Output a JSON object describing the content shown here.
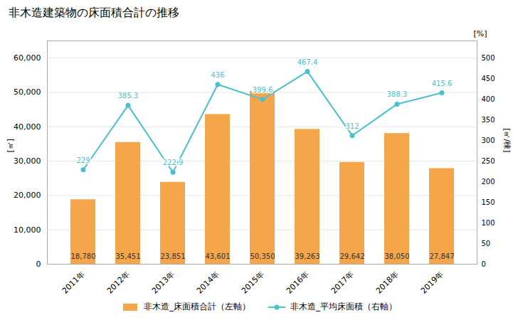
{
  "chart_data": {
    "type": "bar",
    "title": "非木造建築物の床面積合計の推移",
    "categories": [
      "2011年",
      "2012年",
      "2013年",
      "2014年",
      "2015年",
      "2016年",
      "2017年",
      "2018年",
      "2019年"
    ],
    "series": [
      {
        "name": "非木造_床面積合計（左軸）",
        "type": "bar",
        "color": "#F5A54A",
        "values": [
          18780,
          35451,
          23851,
          43601,
          50350,
          39263,
          29642,
          38050,
          27847
        ],
        "data_labels": true,
        "value_labels": [
          "18,780",
          "35,451",
          "23,851",
          "43,601",
          "50,350",
          "39,263",
          "29,642",
          "38,050",
          "27,847"
        ]
      },
      {
        "name": "非木造_平均床面積（右軸）",
        "type": "line",
        "axis": "y2",
        "color": "#4BBFCE",
        "marker": "circle",
        "values": [
          229,
          385.3,
          222.9,
          436,
          399.6,
          467.4,
          312,
          388.3,
          415.6
        ],
        "data_labels": true
      }
    ],
    "ylabel": "[㎡]",
    "y2label": "[㎡/棟]",
    "annotations": [
      "[%]"
    ],
    "ylim": [
      0,
      65000
    ],
    "yticks": [
      0,
      {
        "value": 10000,
        "label": "10,000"
      },
      {
        "value": 20000,
        "label": "20,000"
      },
      {
        "value": 30000,
        "label": "30,000"
      },
      {
        "value": 40000,
        "label": "40,000"
      },
      {
        "value": 50000,
        "label": "50,000"
      },
      {
        "value": 60000,
        "label": "60,000"
      }
    ],
    "y2lim": [
      0,
      541.67
    ],
    "y2ticks": [
      0,
      50,
      100,
      150,
      200,
      250,
      300,
      350,
      400,
      450,
      500
    ],
    "grid": true,
    "legend": "bottom"
  }
}
